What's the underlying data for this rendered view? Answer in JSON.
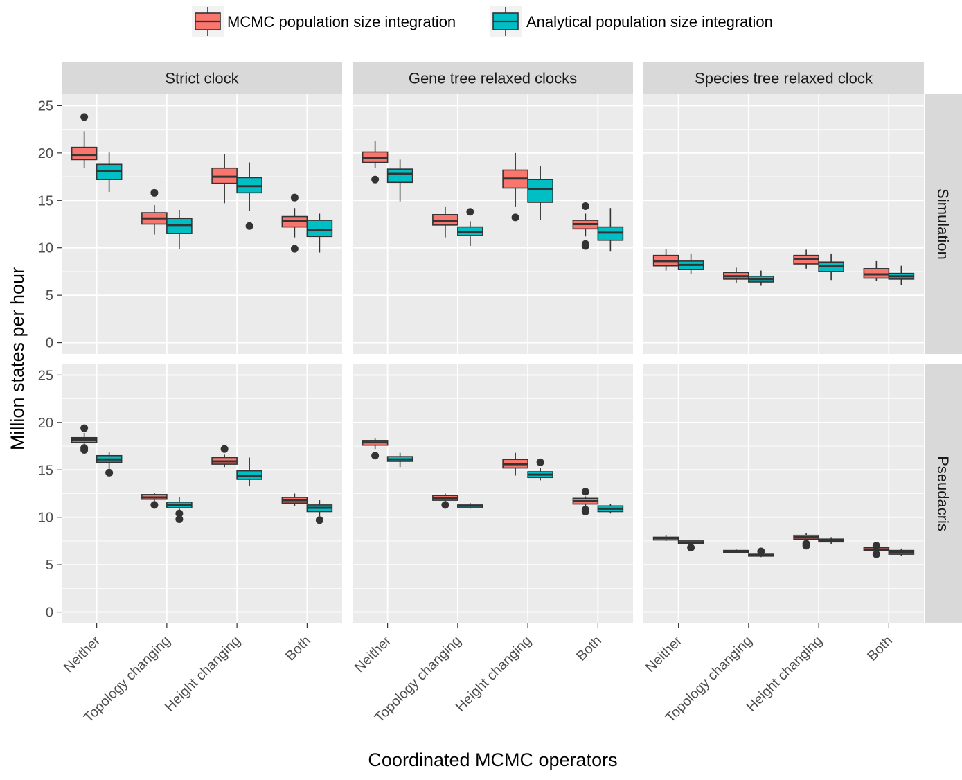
{
  "chart_data": {
    "type": "boxplot",
    "xlabel": "Coordinated MCMC operators",
    "ylabel": "Million states per hour",
    "ylim": [
      -1.2,
      26.2
    ],
    "yticks": [
      0,
      5,
      10,
      15,
      20,
      25
    ],
    "grid": true,
    "legend": {
      "position": "top",
      "entries": [
        {
          "name": "MCMC population size integration",
          "color": "#F8766D"
        },
        {
          "name": "Analytical population size integration",
          "color": "#00BFC4"
        }
      ]
    },
    "categories": [
      "Neither",
      "Topology changing",
      "Height changing",
      "Both"
    ],
    "columns": [
      "Strict clock",
      "Gene tree relaxed clocks",
      "Species tree relaxed clock"
    ],
    "rows": [
      "Simulation",
      "Pseudacris"
    ],
    "panels": [
      {
        "row": "Simulation",
        "column": "Strict clock",
        "series": [
          {
            "name": "MCMC population size integration",
            "boxes": [
              {
                "low": 18.4,
                "q1": 19.3,
                "median": 19.8,
                "q3": 20.6,
                "high": 22.3,
                "outliers": [
                  23.8
                ]
              },
              {
                "low": 11.4,
                "q1": 12.5,
                "median": 13.1,
                "q3": 13.7,
                "high": 14.5,
                "outliers": [
                  15.8
                ]
              },
              {
                "low": 14.7,
                "q1": 16.8,
                "median": 17.5,
                "q3": 18.4,
                "high": 19.9,
                "outliers": []
              },
              {
                "low": 11.1,
                "q1": 12.2,
                "median": 12.8,
                "q3": 13.3,
                "high": 14.2,
                "outliers": [
                  15.3,
                  9.9
                ]
              }
            ]
          },
          {
            "name": "Analytical population size integration",
            "boxes": [
              {
                "low": 15.9,
                "q1": 17.2,
                "median": 18.1,
                "q3": 18.8,
                "high": 20.1,
                "outliers": []
              },
              {
                "low": 9.9,
                "q1": 11.5,
                "median": 12.4,
                "q3": 13.1,
                "high": 14.0,
                "outliers": []
              },
              {
                "low": 13.9,
                "q1": 15.8,
                "median": 16.5,
                "q3": 17.4,
                "high": 19.0,
                "outliers": [
                  12.3
                ]
              },
              {
                "low": 9.5,
                "q1": 11.2,
                "median": 11.9,
                "q3": 12.9,
                "high": 13.6,
                "outliers": []
              }
            ]
          }
        ]
      },
      {
        "row": "Simulation",
        "column": "Gene tree relaxed clocks",
        "series": [
          {
            "name": "MCMC population size integration",
            "boxes": [
              {
                "low": 18.4,
                "q1": 19.0,
                "median": 19.5,
                "q3": 20.1,
                "high": 21.3,
                "outliers": [
                  17.2
                ]
              },
              {
                "low": 11.1,
                "q1": 12.4,
                "median": 12.8,
                "q3": 13.5,
                "high": 14.3,
                "outliers": []
              },
              {
                "low": 14.3,
                "q1": 16.3,
                "median": 17.3,
                "q3": 18.2,
                "high": 20.0,
                "outliers": [
                  13.2
                ]
              },
              {
                "low": 11.2,
                "q1": 12.0,
                "median": 12.5,
                "q3": 12.9,
                "high": 13.6,
                "outliers": [
                  14.4,
                  10.4,
                  10.2
                ]
              }
            ]
          },
          {
            "name": "Analytical population size integration",
            "boxes": [
              {
                "low": 14.9,
                "q1": 16.9,
                "median": 17.8,
                "q3": 18.3,
                "high": 19.3,
                "outliers": []
              },
              {
                "low": 10.2,
                "q1": 11.3,
                "median": 11.7,
                "q3": 12.2,
                "high": 12.8,
                "outliers": [
                  13.8
                ]
              },
              {
                "low": 12.9,
                "q1": 14.8,
                "median": 16.2,
                "q3": 17.2,
                "high": 18.6,
                "outliers": []
              },
              {
                "low": 9.6,
                "q1": 10.8,
                "median": 11.6,
                "q3": 12.2,
                "high": 14.2,
                "outliers": []
              }
            ]
          }
        ]
      },
      {
        "row": "Simulation",
        "column": "Species tree relaxed clock",
        "series": [
          {
            "name": "MCMC population size integration",
            "boxes": [
              {
                "low": 7.6,
                "q1": 8.1,
                "median": 8.6,
                "q3": 9.2,
                "high": 9.9,
                "outliers": []
              },
              {
                "low": 6.3,
                "q1": 6.7,
                "median": 7.0,
                "q3": 7.4,
                "high": 7.9,
                "outliers": []
              },
              {
                "low": 7.8,
                "q1": 8.3,
                "median": 8.8,
                "q3": 9.2,
                "high": 9.8,
                "outliers": []
              },
              {
                "low": 6.5,
                "q1": 6.8,
                "median": 7.2,
                "q3": 7.8,
                "high": 8.6,
                "outliers": []
              }
            ]
          },
          {
            "name": "Analytical population size integration",
            "boxes": [
              {
                "low": 7.2,
                "q1": 7.7,
                "median": 8.2,
                "q3": 8.6,
                "high": 9.4,
                "outliers": []
              },
              {
                "low": 6.0,
                "q1": 6.4,
                "median": 6.7,
                "q3": 7.0,
                "high": 7.6,
                "outliers": []
              },
              {
                "low": 6.6,
                "q1": 7.5,
                "median": 8.1,
                "q3": 8.5,
                "high": 9.4,
                "outliers": []
              },
              {
                "low": 6.1,
                "q1": 6.7,
                "median": 7.0,
                "q3": 7.3,
                "high": 8.1,
                "outliers": []
              }
            ]
          }
        ]
      },
      {
        "row": "Pseudacris",
        "column": "Strict clock",
        "series": [
          {
            "name": "MCMC population size integration",
            "boxes": [
              {
                "low": 17.5,
                "q1": 17.9,
                "median": 18.2,
                "q3": 18.4,
                "high": 18.9,
                "outliers": [
                  19.4,
                  17.3,
                  17.1
                ]
              },
              {
                "low": 11.7,
                "q1": 11.9,
                "median": 12.1,
                "q3": 12.4,
                "high": 12.6,
                "outliers": [
                  11.3
                ]
              },
              {
                "low": 15.3,
                "q1": 15.6,
                "median": 15.9,
                "q3": 16.3,
                "high": 16.6,
                "outliers": [
                  17.2
                ]
              },
              {
                "low": 11.2,
                "q1": 11.5,
                "median": 11.8,
                "q3": 12.1,
                "high": 12.5,
                "outliers": []
              }
            ]
          },
          {
            "name": "Analytical population size integration",
            "boxes": [
              {
                "low": 15.1,
                "q1": 15.8,
                "median": 16.1,
                "q3": 16.5,
                "high": 16.9,
                "outliers": [
                  14.7
                ]
              },
              {
                "low": 10.5,
                "q1": 11.0,
                "median": 11.3,
                "q3": 11.6,
                "high": 12.1,
                "outliers": [
                  10.4,
                  9.8
                ]
              },
              {
                "low": 13.3,
                "q1": 14.0,
                "median": 14.4,
                "q3": 14.9,
                "high": 16.3,
                "outliers": []
              },
              {
                "low": 10.1,
                "q1": 10.6,
                "median": 11.0,
                "q3": 11.3,
                "high": 11.8,
                "outliers": [
                  9.7
                ]
              }
            ]
          }
        ]
      },
      {
        "row": "Pseudacris",
        "column": "Gene tree relaxed clocks",
        "series": [
          {
            "name": "MCMC population size integration",
            "boxes": [
              {
                "low": 17.2,
                "q1": 17.6,
                "median": 17.9,
                "q3": 18.1,
                "high": 18.3,
                "outliers": [
                  16.5
                ]
              },
              {
                "low": 11.6,
                "q1": 11.8,
                "median": 12.0,
                "q3": 12.3,
                "high": 12.5,
                "outliers": [
                  11.3
                ]
              },
              {
                "low": 14.4,
                "q1": 15.2,
                "median": 15.6,
                "q3": 16.1,
                "high": 16.8,
                "outliers": []
              },
              {
                "low": 10.9,
                "q1": 11.4,
                "median": 11.7,
                "q3": 12.0,
                "high": 12.2,
                "outliers": [
                  12.7,
                  10.8,
                  10.6
                ]
              }
            ]
          },
          {
            "name": "Analytical population size integration",
            "boxes": [
              {
                "low": 15.3,
                "q1": 15.9,
                "median": 16.1,
                "q3": 16.4,
                "high": 16.8,
                "outliers": []
              },
              {
                "low": 10.9,
                "q1": 11.0,
                "median": 11.2,
                "q3": 11.3,
                "high": 11.5,
                "outliers": []
              },
              {
                "low": 13.9,
                "q1": 14.2,
                "median": 14.5,
                "q3": 14.8,
                "high": 15.2,
                "outliers": [
                  15.8
                ]
              },
              {
                "low": 10.4,
                "q1": 10.6,
                "median": 10.9,
                "q3": 11.2,
                "high": 11.4,
                "outliers": []
              }
            ]
          }
        ]
      },
      {
        "row": "Pseudacris",
        "column": "Species tree relaxed clock",
        "series": [
          {
            "name": "MCMC population size integration",
            "boxes": [
              {
                "low": 7.5,
                "q1": 7.6,
                "median": 7.8,
                "q3": 7.9,
                "high": 8.1,
                "outliers": []
              },
              {
                "low": 6.2,
                "q1": 6.3,
                "median": 6.4,
                "q3": 6.5,
                "high": 6.6,
                "outliers": []
              },
              {
                "low": 7.4,
                "q1": 7.7,
                "median": 7.9,
                "q3": 8.1,
                "high": 8.3,
                "outliers": [
                  7.2,
                  7.0
                ]
              },
              {
                "low": 6.3,
                "q1": 6.5,
                "median": 6.6,
                "q3": 6.8,
                "high": 6.9,
                "outliers": [
                  7.0,
                  6.1
                ]
              }
            ]
          },
          {
            "name": "Analytical population size integration",
            "boxes": [
              {
                "low": 7.0,
                "q1": 7.2,
                "median": 7.3,
                "q3": 7.5,
                "high": 7.6,
                "outliers": [
                  6.8
                ]
              },
              {
                "low": 5.8,
                "q1": 5.9,
                "median": 6.0,
                "q3": 6.1,
                "high": 6.2,
                "outliers": [
                  6.4
                ]
              },
              {
                "low": 7.2,
                "q1": 7.4,
                "median": 7.5,
                "q3": 7.7,
                "high": 7.9,
                "outliers": []
              },
              {
                "low": 5.9,
                "q1": 6.1,
                "median": 6.3,
                "q3": 6.5,
                "high": 6.7,
                "outliers": []
              }
            ]
          }
        ]
      }
    ]
  }
}
